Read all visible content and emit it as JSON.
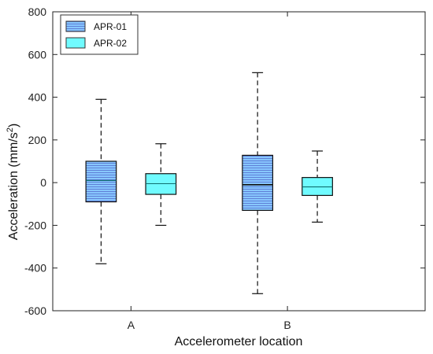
{
  "chart_data": {
    "type": "box",
    "xlabel": "Accelerometer location",
    "ylabel_main": "Acceleration (mm/s",
    "ylabel_sup": "2",
    "ylabel_tail": ")",
    "ylim": [
      -600,
      800
    ],
    "yticks": [
      -600,
      -400,
      -200,
      0,
      200,
      400,
      600,
      800
    ],
    "categories": [
      "A",
      "B"
    ],
    "series": [
      {
        "name": "APR-01",
        "fill": "#87c7ff",
        "pattern": "horizontal-hatch",
        "boxes": [
          {
            "category": "A",
            "min": -380,
            "q1": -90,
            "median": 10,
            "q3": 100,
            "max": 390
          },
          {
            "category": "B",
            "min": -520,
            "q1": -130,
            "median": -10,
            "q3": 128,
            "max": 515
          }
        ]
      },
      {
        "name": "APR-02",
        "fill": "#70fbff",
        "pattern": "solid",
        "boxes": [
          {
            "category": "A",
            "min": -200,
            "q1": -55,
            "median": -5,
            "q3": 42,
            "max": 182
          },
          {
            "category": "B",
            "min": -185,
            "q1": -60,
            "median": -20,
            "q3": 24,
            "max": 148
          }
        ]
      }
    ],
    "legend": {
      "position": "top-left",
      "items": [
        "APR-01",
        "APR-02"
      ]
    },
    "grid": false
  }
}
